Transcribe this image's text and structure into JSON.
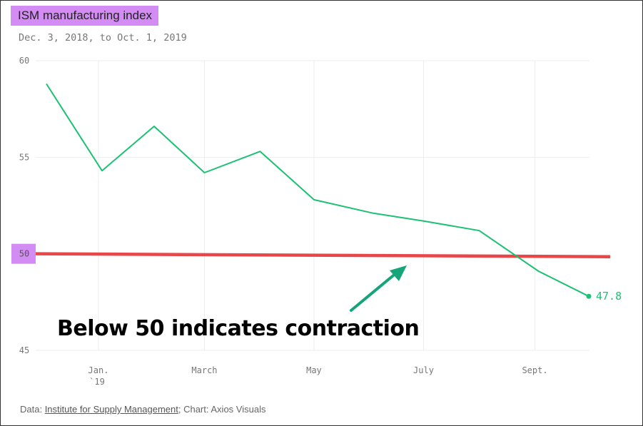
{
  "title": "ISM manufacturing index",
  "subtitle": "Dec. 3, 2018, to Oct. 1, 2019",
  "annotation": "Below 50 indicates contraction",
  "source": {
    "prefix": "Data: ",
    "link_text": "Institute for Supply Management",
    "suffix": "; Chart: Axios Visuals"
  },
  "colors": {
    "line": "#1dc173",
    "threshold": "#e8474a",
    "highlight": "#d48cf5",
    "arrow": "#16a47a",
    "grid": "#eeeeee"
  },
  "chart_data": {
    "type": "line",
    "title": "ISM manufacturing index",
    "subtitle": "Dec. 3, 2018, to Oct. 1, 2019",
    "x": [
      "2018-12-03",
      "2019-01-03",
      "2019-02-01",
      "2019-03-01",
      "2019-04-01",
      "2019-05-01",
      "2019-06-03",
      "2019-07-01",
      "2019-08-01",
      "2019-09-03",
      "2019-10-01"
    ],
    "series": [
      {
        "values": [
          58.8,
          54.3,
          56.6,
          54.2,
          55.3,
          52.8,
          52.1,
          51.7,
          51.2,
          49.1,
          47.8
        ]
      }
    ],
    "ylim": [
      45,
      60
    ],
    "yticks": [
      45,
      55,
      60
    ],
    "highlighted_ytick": "50",
    "xticks": [
      {
        "date": "2019-01-01",
        "label": "Jan.",
        "sublabel": "`19"
      },
      {
        "date": "2019-03-01",
        "label": "March"
      },
      {
        "date": "2019-05-01",
        "label": "May"
      },
      {
        "date": "2019-07-01",
        "label": "July"
      },
      {
        "date": "2019-09-01",
        "label": "Sept."
      }
    ],
    "threshold": {
      "start": 50,
      "end": 49.85
    },
    "end_label": "47.8",
    "grid": true,
    "legend": "none"
  }
}
